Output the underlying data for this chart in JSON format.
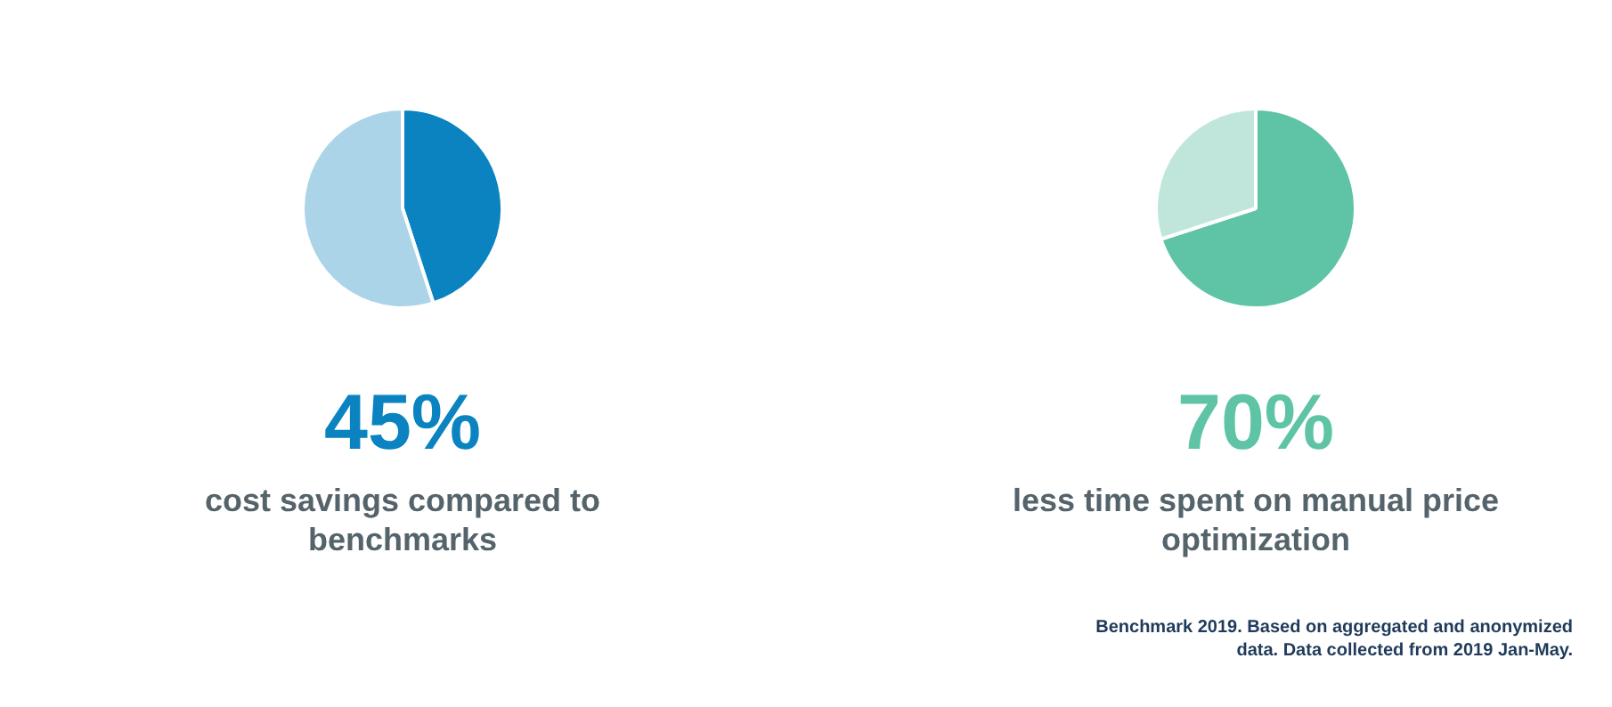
{
  "chart_data": [
    {
      "type": "pie",
      "categories": [
        null,
        null
      ],
      "values": [
        45,
        55
      ],
      "colors": [
        "#0a83c0",
        "#acd4e8"
      ],
      "value_labels": [
        "45%",
        null
      ],
      "legend": false,
      "annotations": [
        "cost savings compared to benchmarks"
      ]
    },
    {
      "type": "pie",
      "categories": [
        null,
        null
      ],
      "values": [
        70,
        30
      ],
      "colors": [
        "#5ec4a5",
        "#c0e6dc"
      ],
      "value_labels": [
        "70%",
        null
      ],
      "legend": false,
      "annotations": [
        "less time spent on manual price optimization",
        "Benchmark 2019. Based on aggregated and anonymized data. Data collected from 2019 Jan-May."
      ]
    }
  ]
}
